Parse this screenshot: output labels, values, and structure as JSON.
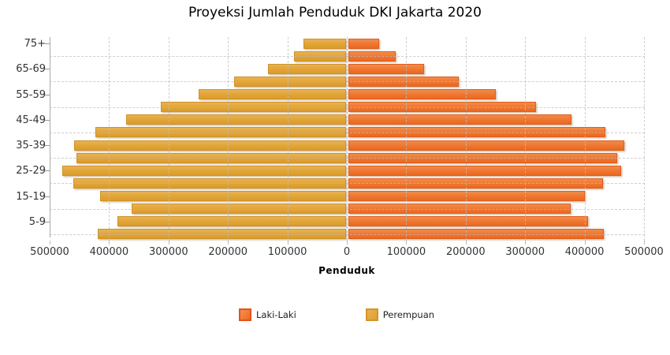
{
  "title": "Proyeksi Jumlah Penduduk DKI Jakarta 2020",
  "xlabel": "Penduduk",
  "colors": {
    "laki_laki": "#EE7630",
    "perempuan": "#E0A436",
    "grid": "#BEBEBE",
    "zero_line": "#9FC3DC"
  },
  "legend": {
    "items": [
      {
        "label": "Laki-Laki"
      },
      {
        "label": "Perempuan"
      }
    ]
  },
  "chart_data": {
    "type": "bar",
    "variant": "population-pyramid",
    "title": "Proyeksi Jumlah Penduduk DKI Jakarta 2020",
    "xlabel": "Penduduk",
    "xlim": [
      -500000,
      500000
    ],
    "grid": true,
    "legend_position": "bottom",
    "categories": [
      "75+",
      "70-74",
      "65-69",
      "60-64",
      "55-59",
      "50-54",
      "45-49",
      "40-44",
      "35-39",
      "30-34",
      "25-29",
      "20-24",
      "15-19",
      "10-14",
      "5-9",
      "0-4"
    ],
    "visible_category_labels": [
      "75+",
      "65-69",
      "55-59",
      "45-49",
      "35-39",
      "25-29",
      "15-19",
      "5-9"
    ],
    "x_tick_labels": [
      "500000",
      "400000",
      "300000",
      "200000",
      "100000",
      "0",
      "100000",
      "200000",
      "300000",
      "400000",
      "500000"
    ],
    "x_tick_values": [
      -500000,
      -400000,
      -300000,
      -200000,
      -100000,
      0,
      100000,
      200000,
      300000,
      400000,
      500000
    ],
    "series": [
      {
        "name": "Laki-Laki",
        "side": "right",
        "color": "#EE7630",
        "values": [
          55000,
          82000,
          130000,
          188000,
          250000,
          318000,
          378000,
          435000,
          467000,
          455000,
          462000,
          431000,
          401000,
          376000,
          406000,
          433000
        ]
      },
      {
        "name": "Perempuan",
        "side": "left",
        "color": "#E0A436",
        "values": [
          74000,
          90000,
          134000,
          191000,
          251000,
          314000,
          373000,
          425000,
          460000,
          456000,
          480000,
          462000,
          416000,
          363000,
          387000,
          420000
        ]
      }
    ]
  }
}
